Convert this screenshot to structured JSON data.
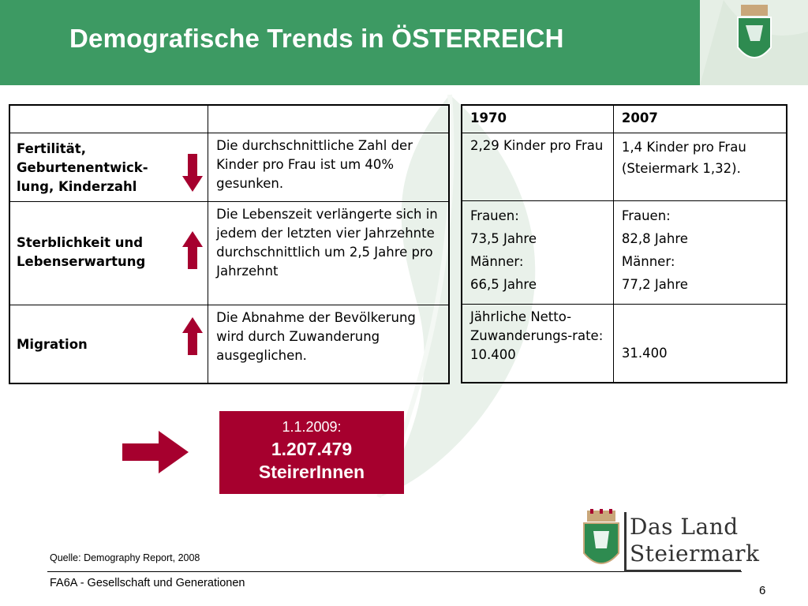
{
  "header": {
    "title": "Demografische Trends in ÖSTERREICH",
    "accent": "#3d9a63"
  },
  "left_table": {
    "header": [
      "",
      ""
    ],
    "rows": [
      {
        "category": "Fertilität, Geburtenentwick-lung, Kinderzahl",
        "trend": "down",
        "description": "Die durchschnittliche Zahl der Kinder pro Frau ist um 40% gesunken."
      },
      {
        "category": "Sterblichkeit und Lebenserwartung",
        "trend": "up",
        "description": "Die Lebenszeit verlängerte sich in jedem der letzten vier Jahrzehnte durchschnittlich um 2,5 Jahre pro Jahrzehnt"
      },
      {
        "category": "Migration",
        "trend": "up",
        "description": "Die Abnahme der Bevölkerung wird durch Zuwanderung ausgeglichen."
      }
    ]
  },
  "right_table": {
    "header": [
      "1970",
      "2007"
    ],
    "row1": {
      "c1": "2,29 Kinder pro Frau",
      "c2_line1": "1,4 Kinder pro Frau",
      "c2_line2": "(Steiermark 1,32)."
    },
    "row2": {
      "c1": [
        "Frauen:",
        "73,5 Jahre",
        "Männer:",
        "66,5 Jahre"
      ],
      "c2": [
        "Frauen:",
        "82,8 Jahre",
        "Männer:",
        "77,2 Jahre"
      ]
    },
    "row3": {
      "c1": "Jährliche Netto-Zuwanderungs-rate: 10.400",
      "c2": "31.400"
    }
  },
  "population": {
    "date": "1.1.2009:",
    "number": "1.207.479",
    "unit": "SteirerInnen",
    "color": "#a6002e"
  },
  "footer": {
    "source": "Quelle: Demography Report, 2008",
    "department": "FA6A - Gesellschaft und Generationen",
    "page": "6"
  },
  "logo": {
    "line1": "Das Land",
    "line2": "Steiermark",
    "icon": "steiermark-crest-icon"
  },
  "arrow_color": "#a6002e"
}
